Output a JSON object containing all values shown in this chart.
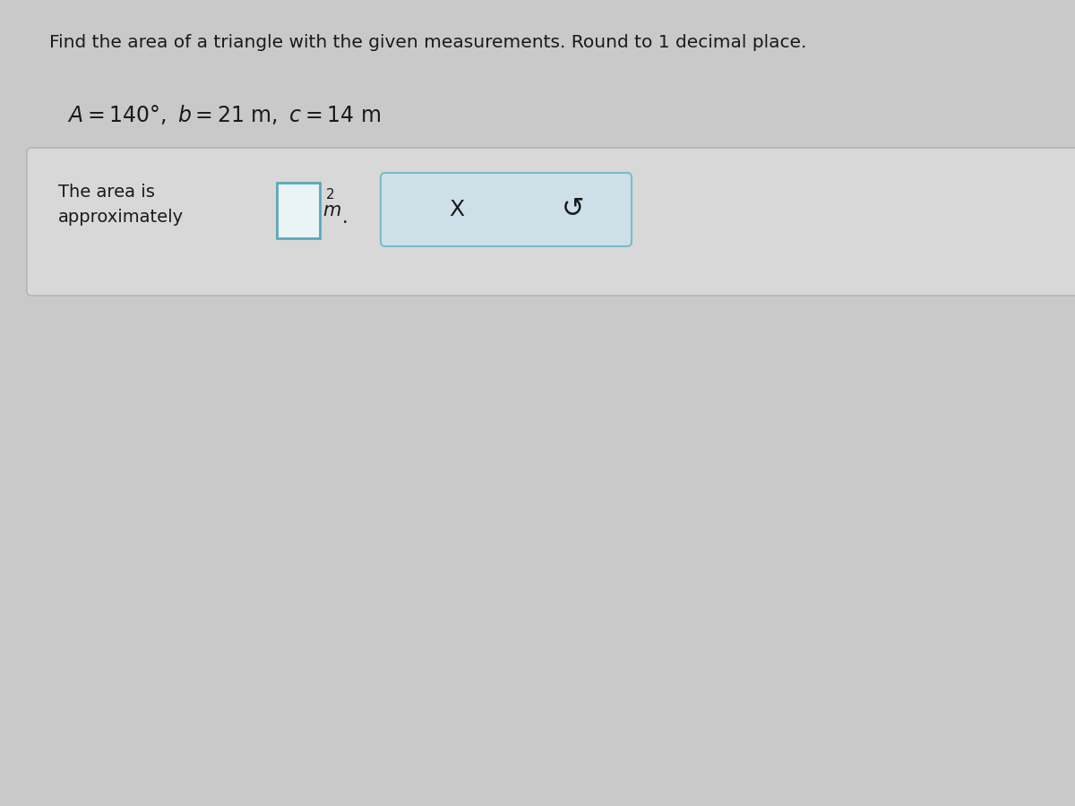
{
  "background_color": "#c9c9c9",
  "title_text": "Find the area of a triangle with the given measurements. Round to 1 decimal place.",
  "title_fontsize": 14.5,
  "problem_fontsize": 17,
  "answer_label": "The area is\napproximately",
  "answer_label_fontsize": 14,
  "text_color": "#1a1a1a",
  "panel_bg": "#d6d6d6",
  "panel_edge": "#b0b0b0",
  "input_box_edge": "#5aa8b8",
  "input_box_bg": "#eaf4f6",
  "btn_box_edge": "#7abbc8",
  "btn_box_bg": "#cde0e8",
  "x_symbol": "X",
  "undo_symbol": "↺"
}
